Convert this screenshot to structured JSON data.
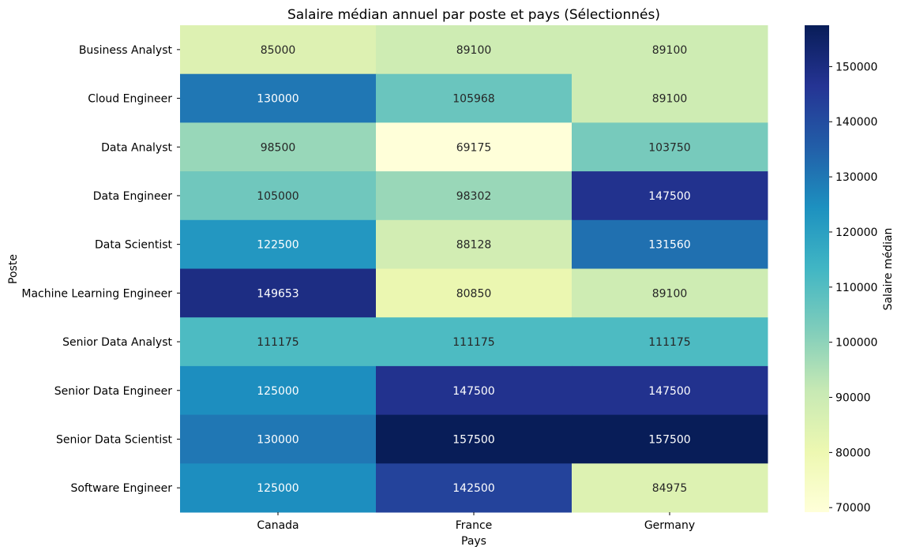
{
  "chart_data": {
    "type": "heatmap",
    "title": "Salaire médian annuel par poste et pays (Sélectionnés)",
    "xlabel": "Pays",
    "ylabel": "Poste",
    "colorbar_label": "Salaire médian",
    "colormap": "YlGnBu",
    "color_range": [
      69175,
      157500
    ],
    "colorbar_ticks": [
      70000,
      80000,
      90000,
      100000,
      110000,
      120000,
      130000,
      140000,
      150000
    ],
    "x_categories": [
      "Canada",
      "France",
      "Germany"
    ],
    "y_categories": [
      "Business Analyst",
      "Cloud Engineer",
      "Data Analyst",
      "Data Engineer",
      "Data Scientist",
      "Machine Learning Engineer",
      "Senior Data Analyst",
      "Senior Data Engineer",
      "Senior Data Scientist",
      "Software Engineer"
    ],
    "values": [
      [
        85000,
        89100,
        89100
      ],
      [
        130000,
        105968,
        89100
      ],
      [
        98500,
        69175,
        103750
      ],
      [
        105000,
        98302,
        147500
      ],
      [
        122500,
        88128,
        131560
      ],
      [
        149653,
        80850,
        89100
      ],
      [
        111175,
        111175,
        111175
      ],
      [
        125000,
        147500,
        147500
      ],
      [
        130000,
        157500,
        157500
      ],
      [
        125000,
        142500,
        84975
      ]
    ]
  }
}
